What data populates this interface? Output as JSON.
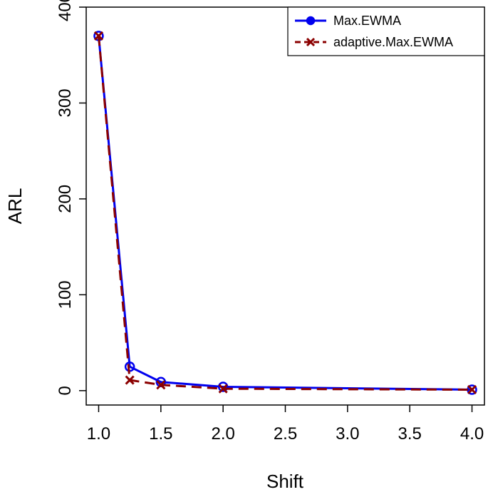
{
  "chart_data": {
    "type": "line",
    "title": "",
    "xlabel": "Shift",
    "ylabel": "ARL",
    "xlim": [
      0.9,
      4.1
    ],
    "ylim": [
      -15,
      400
    ],
    "x_tick_values": [
      1.0,
      1.5,
      2.0,
      2.5,
      3.0,
      3.5,
      4.0
    ],
    "x_tick_labels": [
      "1.0",
      "1.5",
      "2.0",
      "2.5",
      "3.0",
      "3.5",
      "4.0"
    ],
    "y_tick_values": [
      0,
      100,
      200,
      300,
      400
    ],
    "y_tick_labels": [
      "0",
      "100",
      "200",
      "300",
      "400"
    ],
    "x": [
      1.0,
      1.25,
      1.5,
      2.0,
      4.0
    ],
    "grid": false,
    "legend_position": "top-right",
    "series": [
      {
        "name": "Max.EWMA",
        "values": [
          370,
          25,
          9,
          4,
          1
        ],
        "color": "#0000ee",
        "line_style": "solid",
        "marker": "circle"
      },
      {
        "name": "adaptive.Max.EWMA",
        "values": [
          370,
          11,
          6,
          2,
          1
        ],
        "color": "#8b0000",
        "line_style": "dashed",
        "marker": "cross"
      }
    ]
  }
}
